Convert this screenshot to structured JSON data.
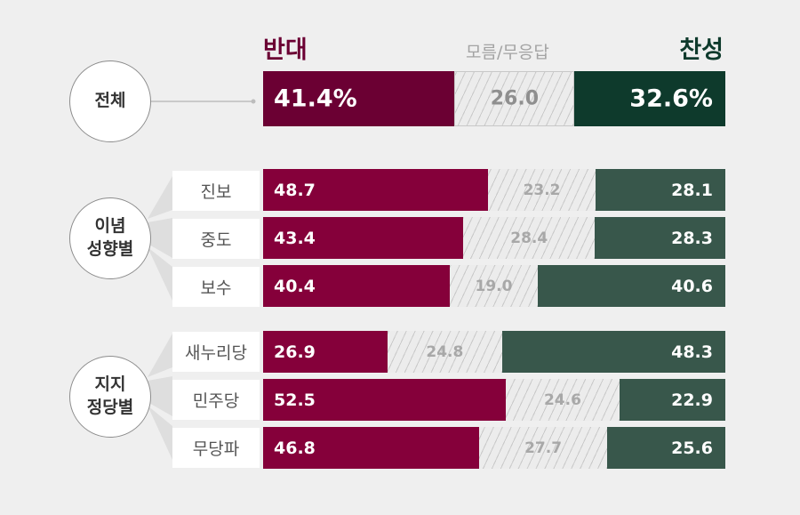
{
  "headers": {
    "oppose": "반대",
    "unknown": "모름/무응답",
    "support": "찬성"
  },
  "colors": {
    "oppose_total": "#6b0033",
    "support_total": "#0e3a2c",
    "oppose": "#85003a",
    "support": "#38574b",
    "unknown": "#ececec"
  },
  "groups": {
    "total": "전체",
    "ideology": {
      "line1": "이념",
      "line2": "성향별"
    },
    "party": {
      "line1": "지지",
      "line2": "정당별"
    }
  },
  "chart_data": {
    "type": "bar",
    "orientation": "horizontal",
    "stacked": true,
    "percent": true,
    "series_order": [
      "반대",
      "모름/무응답",
      "찬성"
    ],
    "total": {
      "label": "전체",
      "oppose": "41.4%",
      "unknown": "26.0",
      "support": "32.6%"
    },
    "rows": [
      {
        "group": "이념 성향별",
        "label": "진보",
        "oppose": "48.7",
        "unknown": "23.2",
        "support": "28.1"
      },
      {
        "group": "이념 성향별",
        "label": "중도",
        "oppose": "43.4",
        "unknown": "28.4",
        "support": "28.3"
      },
      {
        "group": "이념 성향별",
        "label": "보수",
        "oppose": "40.4",
        "unknown": "19.0",
        "support": "40.6"
      },
      {
        "group": "지지 정당별",
        "label": "새누리당",
        "oppose": "26.9",
        "unknown": "24.8",
        "support": "48.3"
      },
      {
        "group": "지지 정당별",
        "label": "민주당",
        "oppose": "52.5",
        "unknown": "24.6",
        "support": "22.9"
      },
      {
        "group": "지지 정당별",
        "label": "무당파",
        "oppose": "46.8",
        "unknown": "27.7",
        "support": "25.6"
      }
    ]
  }
}
